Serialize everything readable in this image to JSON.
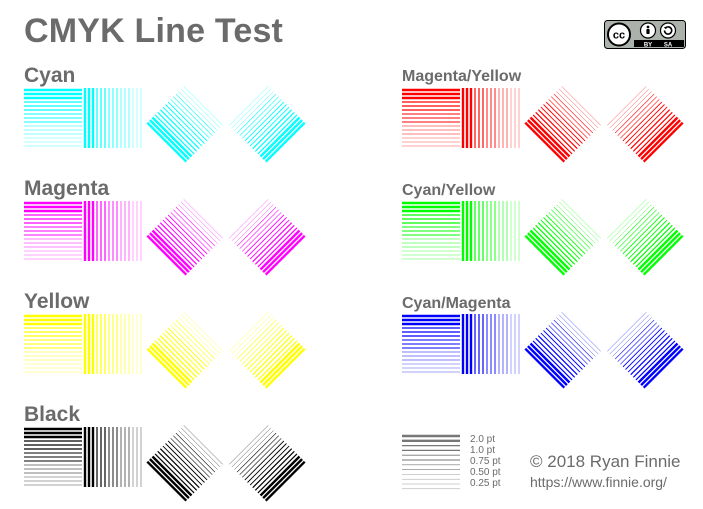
{
  "title": "CMYK Line Test",
  "license_badge": {
    "icon": "creative-commons-by-sa-icon",
    "by_text": "BY",
    "sa_text": "SA"
  },
  "samples": [
    {
      "label": "Cyan",
      "color": "#00ffff"
    },
    {
      "label": "Magenta",
      "color": "#ff00ff"
    },
    {
      "label": "Yellow",
      "color": "#ffff00"
    },
    {
      "label": "Black",
      "color": "#000000"
    },
    {
      "label": "Magenta/Yellow",
      "color": "#ff0000"
    },
    {
      "label": "Cyan/Yellow",
      "color": "#00ff00"
    },
    {
      "label": "Cyan/Magenta",
      "color": "#0000ff"
    }
  ],
  "legend": {
    "color": "#777777",
    "widths_pt": [
      "2.0 pt",
      "1.0 pt",
      "0.75 pt",
      "0.50 pt",
      "0.25 pt"
    ]
  },
  "copyright": "© 2018 Ryan Finnie",
  "url": "https://www.finnie.org/"
}
